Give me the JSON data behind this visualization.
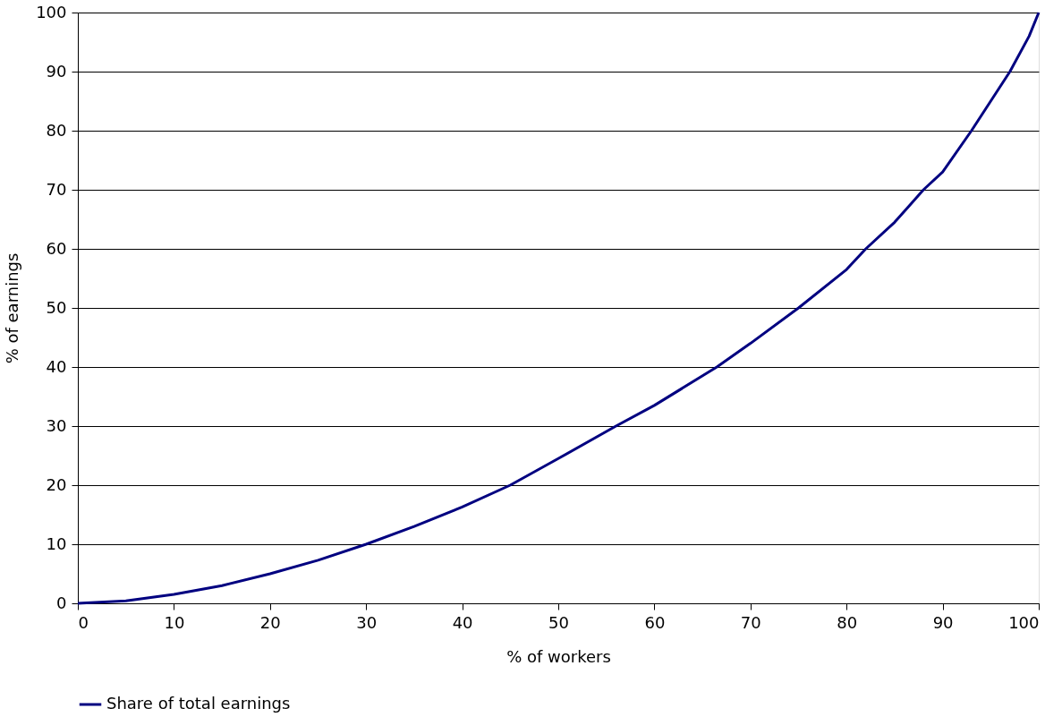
{
  "chart_data": {
    "type": "line",
    "xlabel": "% of workers",
    "ylabel": "% of earnings",
    "x": [
      0,
      5,
      10,
      15,
      20,
      25,
      30,
      35,
      40,
      45,
      50,
      56,
      60,
      66.5,
      70,
      75,
      80,
      82,
      85,
      88,
      90,
      93,
      95,
      97,
      99,
      100
    ],
    "series": [
      {
        "name": "Share of total earnings",
        "color": "#000080",
        "values": [
          0,
          0.4,
          1.5,
          3,
          5,
          7.3,
          10,
          13,
          16.3,
          20,
          24.5,
          30,
          33.5,
          40,
          44,
          50,
          56.5,
          60,
          64.5,
          70,
          73,
          80,
          85,
          90,
          96,
          100
        ]
      }
    ],
    "xlim": [
      0,
      100
    ],
    "ylim": [
      0,
      100
    ],
    "xticks": [
      0,
      10,
      20,
      30,
      40,
      50,
      60,
      70,
      80,
      90,
      100
    ],
    "yticks": [
      0,
      10,
      20,
      30,
      40,
      50,
      60,
      70,
      80,
      90,
      100
    ],
    "grid": "y",
    "legend": "bottom",
    "marker": "none",
    "line_style": "solid"
  }
}
